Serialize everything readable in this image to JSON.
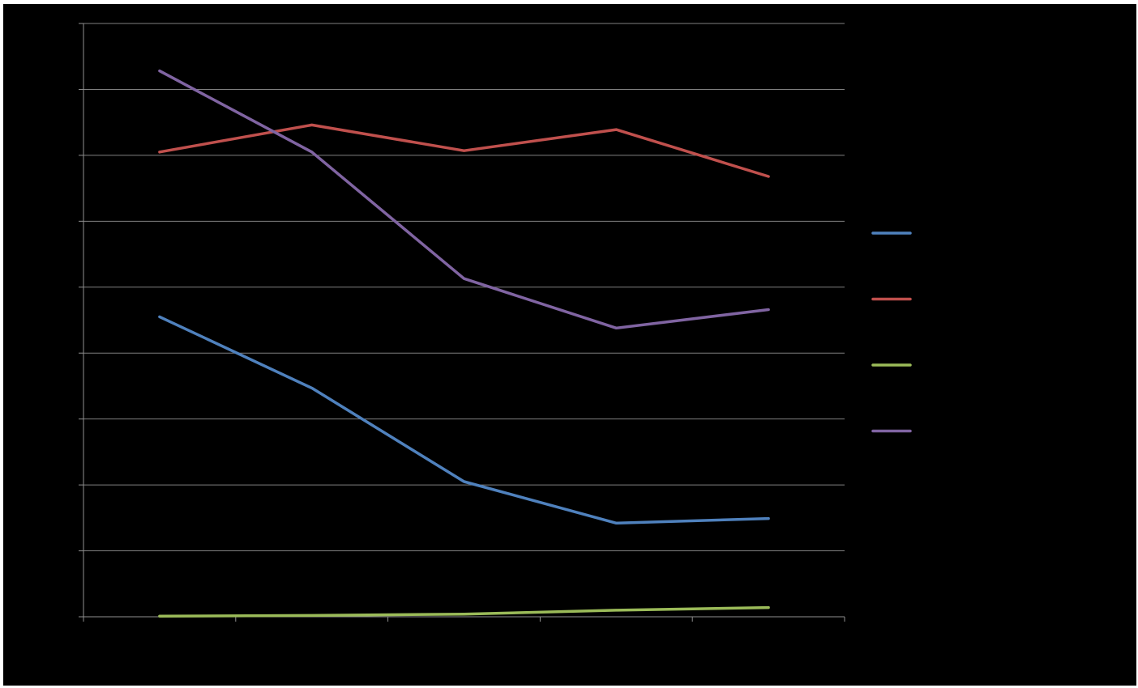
{
  "colors": {
    "background": "#000000",
    "gridline": "#808080",
    "axis": "#909090"
  },
  "chart_data": {
    "type": "line",
    "title": "",
    "xlabel": "",
    "ylabel": "",
    "x": [
      1,
      2,
      3,
      4,
      5
    ],
    "ylim": [
      0,
      9
    ],
    "grid": true,
    "legend": "right",
    "series": [
      {
        "color": "#4f81bd",
        "values": [
          4.55,
          3.47,
          2.05,
          1.42,
          1.49
        ]
      },
      {
        "color": "#c0504d",
        "values": [
          7.05,
          7.46,
          7.07,
          7.39,
          6.68
        ]
      },
      {
        "color": "#9bbb59",
        "values": [
          0.01,
          0.02,
          0.04,
          0.1,
          0.14
        ]
      },
      {
        "color": "#8064a2",
        "values": [
          8.28,
          7.05,
          5.13,
          4.38,
          4.66
        ]
      }
    ]
  }
}
